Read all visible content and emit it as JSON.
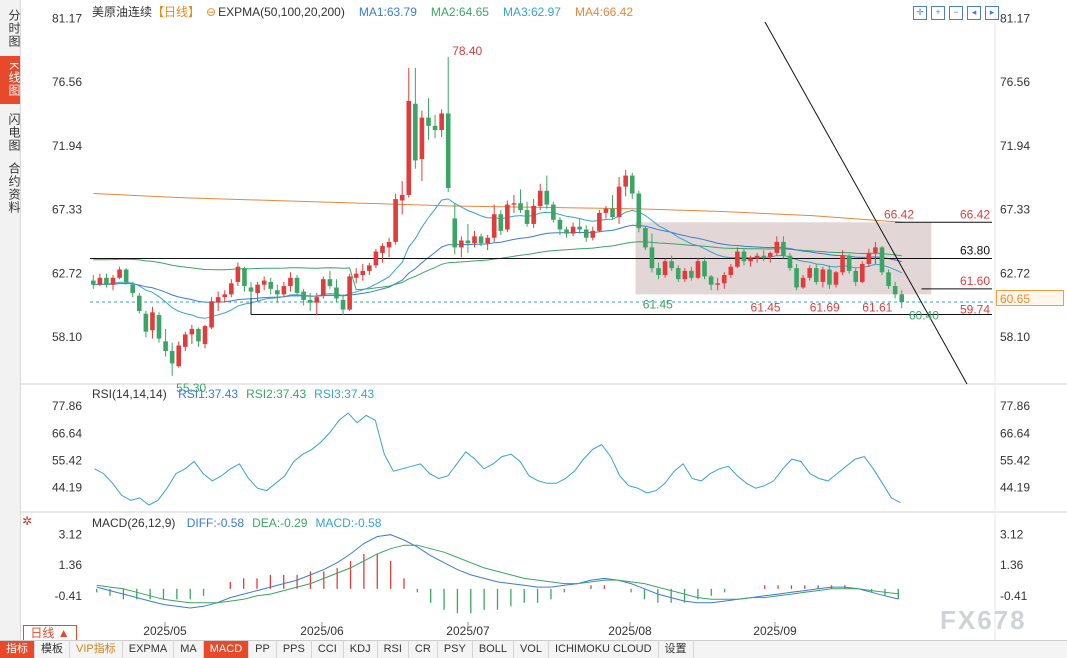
{
  "instrument": "美原油连续",
  "period": "【日线】",
  "ema_label": "EXPMA(50,100,20,200)",
  "ma_legend": [
    {
      "label": "MA1:63.79",
      "color": "#3a7bd5"
    },
    {
      "label": "MA2:64.65",
      "color": "#3aa564"
    },
    {
      "label": "MA3:62.97",
      "color": "#36a3c9"
    },
    {
      "label": "MA4:66.42",
      "color": "#e8863a"
    }
  ],
  "left_tabs": [
    {
      "label": "分时图",
      "active": false
    },
    {
      "label": "K线图",
      "active": true
    },
    {
      "label": "闪电图",
      "active": false
    },
    {
      "label": "合约资料",
      "active": false
    }
  ],
  "price_axis": [
    "81.17",
    "76.56",
    "71.94",
    "67.33",
    "62.72",
    "58.10"
  ],
  "price_range": [
    55.0,
    81.5
  ],
  "price_annotations": {
    "high": "78.40",
    "low": "55.30",
    "box_top": "66.42",
    "box_line_label": "66.42",
    "h_line": "63.80",
    "r_61_60": "61.60",
    "lows_row": [
      "61.45",
      "61.69",
      "61.61"
    ],
    "low_left": "61.45",
    "l_59_74": "59.74",
    "last_low": "60.40",
    "last_price": "60.65"
  },
  "rsi": {
    "label": "RSI(14,14,14)",
    "legend": [
      {
        "label": "RSI1:37.43",
        "color": "#3a7bd5"
      },
      {
        "label": "RSI2:37.43",
        "color": "#3aa564"
      },
      {
        "label": "RSI3:37.43",
        "color": "#36a3c9"
      }
    ],
    "axis": [
      "77.86",
      "66.64",
      "55.42",
      "44.19"
    ],
    "range": [
      35,
      82
    ]
  },
  "macd": {
    "label": "MACD(26,12,9)",
    "legend": [
      {
        "label": "DIFF:-0.58",
        "color": "#3a7bd5"
      },
      {
        "label": "DEA:-0.29",
        "color": "#3aa564"
      },
      {
        "label": "MACD:-0.58",
        "color": "#36a3c9"
      }
    ],
    "axis": [
      "3.12",
      "1.36",
      "-0.41"
    ],
    "range": [
      -1.9,
      3.6
    ]
  },
  "x_labels": [
    "2025/05",
    "2025/06",
    "2025/07",
    "2025/08",
    "2025/09"
  ],
  "period_button": "日线 ▲",
  "watermark": "FX678",
  "bottom_tabs": [
    {
      "label": "指标",
      "style": "active"
    },
    {
      "label": "模板",
      "style": ""
    },
    {
      "label": "VIP指标",
      "style": "vip"
    },
    {
      "label": "EXPMA",
      "style": ""
    },
    {
      "label": "MA",
      "style": ""
    },
    {
      "label": "MACD",
      "style": "active"
    },
    {
      "label": "PP",
      "style": ""
    },
    {
      "label": "PPS",
      "style": ""
    },
    {
      "label": "CCI",
      "style": ""
    },
    {
      "label": "KDJ",
      "style": ""
    },
    {
      "label": "RSI",
      "style": ""
    },
    {
      "label": "CR",
      "style": ""
    },
    {
      "label": "PSY",
      "style": ""
    },
    {
      "label": "BOLL",
      "style": ""
    },
    {
      "label": "VOL",
      "style": ""
    },
    {
      "label": "ICHIMOKU CLOUD",
      "style": ""
    },
    {
      "label": "设置",
      "style": ""
    }
  ],
  "colors": {
    "up": "#e23b3b",
    "down": "#3aa564",
    "ma1": "#3a7bd5",
    "ma2": "#3aa564",
    "ma3": "#36a3c9",
    "ma4": "#e8863a",
    "box": "#ddd0cf"
  },
  "chart_data": {
    "type": "candlestick",
    "title": "美原油连续",
    "y_range": [
      55.0,
      81.5
    ],
    "ohlc": [
      [
        62.2,
        62.6,
        61.6,
        61.9
      ],
      [
        61.9,
        62.7,
        61.8,
        62.4
      ],
      [
        62.4,
        62.7,
        61.7,
        61.9
      ],
      [
        61.9,
        62.6,
        61.5,
        62.4
      ],
      [
        62.4,
        63.2,
        62.3,
        63.0
      ],
      [
        63.0,
        63.1,
        61.9,
        62.1
      ],
      [
        61.9,
        62.1,
        61.0,
        61.3
      ],
      [
        61.1,
        61.3,
        59.8,
        60.0
      ],
      [
        59.8,
        60.0,
        58.1,
        58.5
      ],
      [
        58.6,
        60.3,
        58.0,
        59.9
      ],
      [
        59.7,
        59.9,
        57.7,
        58.0
      ],
      [
        57.8,
        58.7,
        56.7,
        57.1
      ],
      [
        57.1,
        57.7,
        55.3,
        56.2
      ],
      [
        56.0,
        57.8,
        55.9,
        57.5
      ],
      [
        57.4,
        58.5,
        57.1,
        58.3
      ],
      [
        58.3,
        59.0,
        57.6,
        58.7
      ],
      [
        58.7,
        58.8,
        57.4,
        57.8
      ],
      [
        57.6,
        59.0,
        57.3,
        58.9
      ],
      [
        58.8,
        61.0,
        58.7,
        60.7
      ],
      [
        60.6,
        61.4,
        60.0,
        61.0
      ],
      [
        61.0,
        61.5,
        60.6,
        61.2
      ],
      [
        61.2,
        62.3,
        61.0,
        62.0
      ],
      [
        62.1,
        63.5,
        61.8,
        63.2
      ],
      [
        63.1,
        63.2,
        61.4,
        61.8
      ],
      [
        61.7,
        62.1,
        60.9,
        61.4
      ],
      [
        61.3,
        62.1,
        60.7,
        61.9
      ],
      [
        61.9,
        62.5,
        61.5,
        62.2
      ],
      [
        62.1,
        62.4,
        61.2,
        61.6
      ],
      [
        61.5,
        61.9,
        60.6,
        61.2
      ],
      [
        61.2,
        62.1,
        61.0,
        61.8
      ],
      [
        61.8,
        62.8,
        61.4,
        62.4
      ],
      [
        62.4,
        62.6,
        61.2,
        61.3
      ],
      [
        61.4,
        61.6,
        60.4,
        60.8
      ],
      [
        60.8,
        61.3,
        60.0,
        60.6
      ],
      [
        60.6,
        61.3,
        59.7,
        61.0
      ],
      [
        61.1,
        62.5,
        60.9,
        62.3
      ],
      [
        62.3,
        62.9,
        61.6,
        61.8
      ],
      [
        61.7,
        62.3,
        60.6,
        60.9
      ],
      [
        60.8,
        61.2,
        59.7,
        60.1
      ],
      [
        60.1,
        62.7,
        60.0,
        62.5
      ],
      [
        62.4,
        63.1,
        62.0,
        62.7
      ],
      [
        62.6,
        63.4,
        62.2,
        62.9
      ],
      [
        62.9,
        63.5,
        62.6,
        63.3
      ],
      [
        63.3,
        64.5,
        63.1,
        64.3
      ],
      [
        64.2,
        64.9,
        63.5,
        64.7
      ],
      [
        64.6,
        65.3,
        63.9,
        65.0
      ],
      [
        65.0,
        68.5,
        64.8,
        68.1
      ],
      [
        68.0,
        69.4,
        67.0,
        68.4
      ],
      [
        68.4,
        77.6,
        68.2,
        75.2
      ],
      [
        75.0,
        77.6,
        70.3,
        70.9
      ],
      [
        71.0,
        74.5,
        69.4,
        74.0
      ],
      [
        74.0,
        75.4,
        72.4,
        73.4
      ],
      [
        73.4,
        74.2,
        72.5,
        73.1
      ],
      [
        73.1,
        74.6,
        72.6,
        74.3
      ],
      [
        74.3,
        78.4,
        68.6,
        68.9
      ],
      [
        66.7,
        67.8,
        64.1,
        64.6
      ],
      [
        64.6,
        65.4,
        63.9,
        65.1
      ],
      [
        65.1,
        66.3,
        64.2,
        64.9
      ],
      [
        64.9,
        65.8,
        64.6,
        65.4
      ],
      [
        65.4,
        65.6,
        64.7,
        64.9
      ],
      [
        64.9,
        65.5,
        64.4,
        65.3
      ],
      [
        65.3,
        67.7,
        65.0,
        67.0
      ],
      [
        67.0,
        67.3,
        65.5,
        65.8
      ],
      [
        65.9,
        68.0,
        65.7,
        67.7
      ],
      [
        67.7,
        68.4,
        67.1,
        67.8
      ],
      [
        67.8,
        68.8,
        67.1,
        67.3
      ],
      [
        67.3,
        67.9,
        66.1,
        66.3
      ],
      [
        66.3,
        68.1,
        66.0,
        67.6
      ],
      [
        67.6,
        69.2,
        67.3,
        68.7
      ],
      [
        68.7,
        69.8,
        67.4,
        67.7
      ],
      [
        67.7,
        67.9,
        66.4,
        66.6
      ],
      [
        66.6,
        66.8,
        65.5,
        65.9
      ],
      [
        65.9,
        66.1,
        65.3,
        65.6
      ],
      [
        65.6,
        66.4,
        65.4,
        66.1
      ],
      [
        66.1,
        66.7,
        65.6,
        65.9
      ],
      [
        65.9,
        66.2,
        65.0,
        65.3
      ],
      [
        65.3,
        66.1,
        65.1,
        65.8
      ],
      [
        65.8,
        67.3,
        65.7,
        67.1
      ],
      [
        67.1,
        67.6,
        66.7,
        67.4
      ],
      [
        67.4,
        68.4,
        66.6,
        66.8
      ],
      [
        66.8,
        69.7,
        66.3,
        69.0
      ],
      [
        69.0,
        70.2,
        68.3,
        69.8
      ],
      [
        69.8,
        70.0,
        68.1,
        68.5
      ],
      [
        68.5,
        68.7,
        65.7,
        66.0
      ],
      [
        66.0,
        66.1,
        64.4,
        64.6
      ],
      [
        64.6,
        65.6,
        62.8,
        63.1
      ],
      [
        63.1,
        63.5,
        62.3,
        62.6
      ],
      [
        62.6,
        63.8,
        62.4,
        63.6
      ],
      [
        63.6,
        64.0,
        62.9,
        63.1
      ],
      [
        63.1,
        63.3,
        62.1,
        62.3
      ],
      [
        62.3,
        63.1,
        62.1,
        62.9
      ],
      [
        62.9,
        63.2,
        62.2,
        62.4
      ],
      [
        62.4,
        63.8,
        62.3,
        63.6
      ],
      [
        63.6,
        63.9,
        62.3,
        62.5
      ],
      [
        62.5,
        62.6,
        61.5,
        61.9
      ],
      [
        61.9,
        62.4,
        61.5,
        62.0
      ],
      [
        62.0,
        62.8,
        61.6,
        62.6
      ],
      [
        62.6,
        63.4,
        62.4,
        63.2
      ],
      [
        63.2,
        64.6,
        63.1,
        64.3
      ],
      [
        64.3,
        64.5,
        63.3,
        63.6
      ],
      [
        63.6,
        64.0,
        63.2,
        63.8
      ],
      [
        63.8,
        64.2,
        63.5,
        64.0
      ],
      [
        64.0,
        64.4,
        63.6,
        63.9
      ],
      [
        63.9,
        64.3,
        63.5,
        64.2
      ],
      [
        64.2,
        65.4,
        64.0,
        65.0
      ],
      [
        65.0,
        65.4,
        63.8,
        64.0
      ],
      [
        64.0,
        64.2,
        62.9,
        63.1
      ],
      [
        63.1,
        63.4,
        61.5,
        61.7
      ],
      [
        61.7,
        62.6,
        61.6,
        62.4
      ],
      [
        62.4,
        63.3,
        62.2,
        63.1
      ],
      [
        63.1,
        63.4,
        61.9,
        62.1
      ],
      [
        62.1,
        63.2,
        61.7,
        63.0
      ],
      [
        63.0,
        63.3,
        61.6,
        61.9
      ],
      [
        61.9,
        62.9,
        61.7,
        62.8
      ],
      [
        62.8,
        64.4,
        62.6,
        64.0
      ],
      [
        64.0,
        64.1,
        62.7,
        62.9
      ],
      [
        62.9,
        63.1,
        61.8,
        62.1
      ],
      [
        62.1,
        63.6,
        62.0,
        63.4
      ],
      [
        63.4,
        64.5,
        63.2,
        64.2
      ],
      [
        64.2,
        65.0,
        63.4,
        64.6
      ],
      [
        64.6,
        64.7,
        62.6,
        62.8
      ],
      [
        62.8,
        63.0,
        61.6,
        61.8
      ],
      [
        61.8,
        62.1,
        60.9,
        61.2
      ],
      [
        61.2,
        61.5,
        60.2,
        60.65
      ]
    ],
    "ma4_series_approx": [
      68.5,
      68.2,
      68.0,
      67.8,
      67.6,
      67.5,
      67.4,
      67.2,
      66.9,
      66.42
    ],
    "horizontal_levels": [
      66.42,
      63.8,
      61.6,
      59.74
    ],
    "box": {
      "from_index": 83,
      "to_index": 127,
      "top": 66.42,
      "bottom": 61.2
    },
    "rsi": [
      52,
      50,
      46,
      41,
      39,
      40,
      37,
      39,
      44,
      50,
      52,
      55,
      50,
      47,
      49,
      52,
      54,
      48,
      44,
      43,
      46,
      49,
      55,
      58,
      60,
      63,
      67,
      72,
      75,
      71,
      74,
      72,
      58,
      51,
      52,
      53,
      54,
      50,
      48,
      49,
      54,
      59,
      56,
      52,
      54,
      57,
      58,
      55,
      49,
      47,
      46,
      46,
      48,
      51,
      56,
      60,
      62,
      57,
      49,
      45,
      44,
      42,
      43,
      46,
      51,
      54,
      48,
      47,
      50,
      52,
      53,
      49,
      46,
      44,
      45,
      47,
      52,
      56,
      55,
      50,
      48,
      47,
      50,
      53,
      56,
      57,
      52,
      46,
      40,
      38
    ],
    "macd_diff": [
      0.1,
      -0.1,
      -0.3,
      -0.5,
      -0.7,
      -0.9,
      -1.0,
      -1.1,
      -1.0,
      -0.8,
      -0.5,
      -0.3,
      -0.1,
      0.1,
      0.3,
      0.5,
      0.8,
      1.1,
      1.5,
      2.0,
      2.6,
      3.0,
      3.1,
      2.8,
      2.4,
      1.9,
      1.5,
      1.1,
      0.8,
      0.6,
      0.4,
      0.3,
      0.2,
      0.1,
      0.1,
      0.2,
      0.3,
      0.5,
      0.6,
      0.5,
      0.3,
      0.0,
      -0.3,
      -0.5,
      -0.7,
      -0.8,
      -0.8,
      -0.7,
      -0.6,
      -0.5,
      -0.4,
      -0.3,
      -0.2,
      -0.1,
      0.0,
      0.1,
      0.1,
      0.0,
      -0.2,
      -0.4,
      -0.58
    ],
    "macd_dea": [
      0.2,
      0.1,
      0.0,
      -0.2,
      -0.4,
      -0.6,
      -0.7,
      -0.8,
      -0.8,
      -0.8,
      -0.7,
      -0.6,
      -0.4,
      -0.3,
      -0.1,
      0.1,
      0.3,
      0.6,
      0.9,
      1.2,
      1.6,
      2.0,
      2.3,
      2.5,
      2.5,
      2.3,
      2.1,
      1.8,
      1.5,
      1.2,
      1.0,
      0.8,
      0.6,
      0.5,
      0.4,
      0.3,
      0.3,
      0.4,
      0.5,
      0.5,
      0.4,
      0.3,
      0.1,
      -0.1,
      -0.3,
      -0.5,
      -0.6,
      -0.6,
      -0.6,
      -0.5,
      -0.5,
      -0.4,
      -0.3,
      -0.2,
      -0.1,
      0.0,
      0.0,
      0.0,
      -0.1,
      -0.2,
      -0.29
    ]
  }
}
